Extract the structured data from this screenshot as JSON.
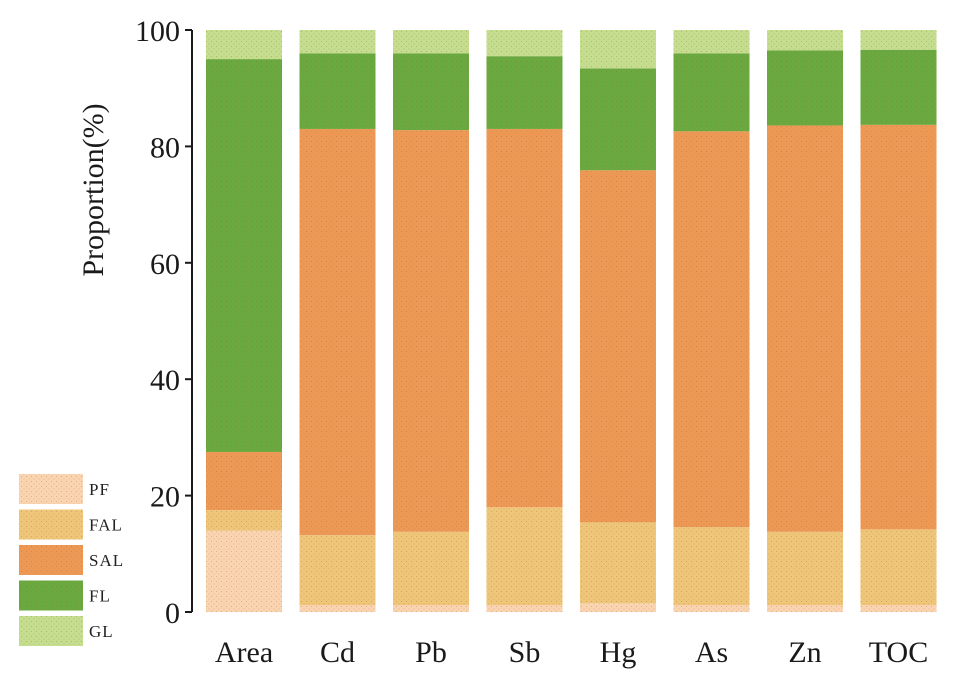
{
  "chart_data": {
    "type": "bar",
    "stacked": true,
    "title": "",
    "xlabel": "",
    "ylabel": "Proportion(%)",
    "ylim": [
      0,
      100
    ],
    "yticks": [
      "0",
      "20",
      "40",
      "60",
      "80",
      "100"
    ],
    "categories": [
      "Area",
      "Cd",
      "Pb",
      "Sb",
      "Hg",
      "As",
      "Zn",
      "TOC"
    ],
    "series": [
      {
        "name": "PF",
        "color": "#fad3b0",
        "values": [
          14.0,
          1.2,
          1.2,
          1.2,
          1.5,
          1.2,
          1.2,
          1.2
        ]
      },
      {
        "name": "FAL",
        "color": "#efc57a",
        "values": [
          3.5,
          12.0,
          12.6,
          16.8,
          13.9,
          13.4,
          12.6,
          13.0
        ]
      },
      {
        "name": "SAL",
        "color": "#ee9856",
        "values": [
          10.0,
          69.8,
          69.0,
          65.0,
          60.5,
          68.0,
          69.8,
          69.5
        ]
      },
      {
        "name": "FL",
        "color": "#6aa93f",
        "values": [
          67.5,
          13.0,
          13.2,
          12.5,
          17.5,
          13.4,
          12.9,
          12.9
        ]
      },
      {
        "name": "GL",
        "color": "#c4dd8f",
        "values": [
          5.0,
          4.0,
          4.0,
          4.5,
          6.6,
          4.0,
          3.5,
          3.4
        ]
      }
    ],
    "legend": {
      "position": "bottom-left",
      "order": [
        "PF",
        "FAL",
        "SAL",
        "FL",
        "GL"
      ]
    }
  }
}
